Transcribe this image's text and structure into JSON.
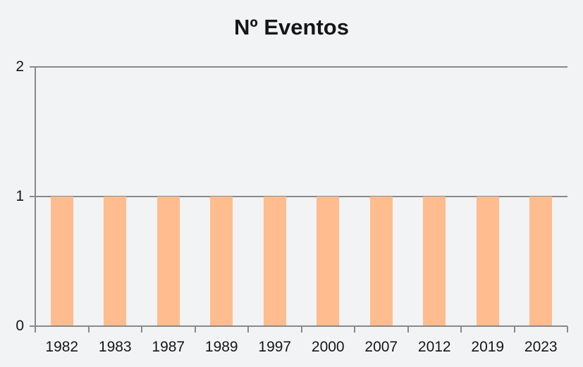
{
  "chart_data": {
    "type": "bar",
    "title": "Nº Eventos",
    "categories": [
      "1982",
      "1983",
      "1987",
      "1989",
      "1997",
      "2000",
      "2007",
      "2012",
      "2019",
      "2023"
    ],
    "values": [
      1,
      1,
      1,
      1,
      1,
      1,
      1,
      1,
      1,
      1
    ],
    "xlabel": "",
    "ylabel": "",
    "ylim": [
      0,
      2
    ],
    "yticks": [
      0,
      1,
      2
    ],
    "grid": "horizontal",
    "legend": "none",
    "colors": {
      "bar": "#FFBC8E",
      "axis": "#898989",
      "background": "#F2F3F5",
      "title_text": "#161616",
      "tick_text": "#161616"
    }
  }
}
